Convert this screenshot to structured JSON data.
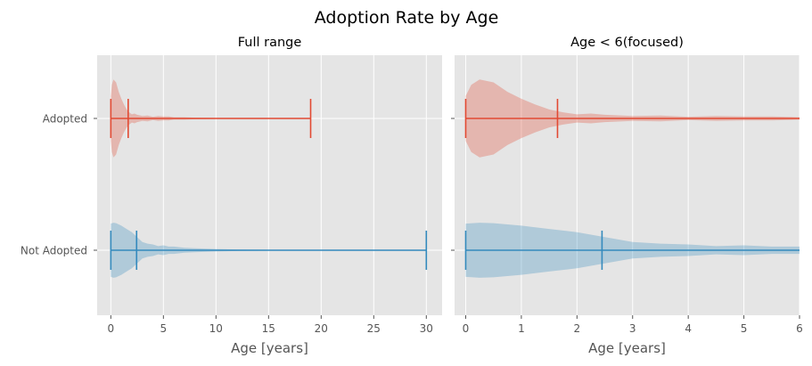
{
  "chart_data": {
    "type": "violin",
    "title": "Adoption Rate by Age",
    "colors": {
      "Adopted": "#E24A33",
      "Not Adopted": "#348ABD",
      "background": "#E5E5E5",
      "grid": "#FFFFFF"
    },
    "categories": [
      "Not Adopted",
      "Adopted"
    ],
    "series": [
      {
        "name": "Adopted",
        "stats": {
          "min": 0,
          "median": 1.65,
          "max": 19
        },
        "density": [
          [
            0,
            0.55
          ],
          [
            0.1,
            0.82
          ],
          [
            0.25,
            0.95
          ],
          [
            0.5,
            0.88
          ],
          [
            0.75,
            0.65
          ],
          [
            1,
            0.48
          ],
          [
            1.25,
            0.34
          ],
          [
            1.5,
            0.22
          ],
          [
            1.75,
            0.15
          ],
          [
            2,
            0.1
          ],
          [
            2.25,
            0.12
          ],
          [
            2.5,
            0.09
          ],
          [
            3,
            0.06
          ],
          [
            3.5,
            0.07
          ],
          [
            4,
            0.04
          ],
          [
            4.5,
            0.06
          ],
          [
            5,
            0.05
          ],
          [
            5.5,
            0.05
          ],
          [
            6,
            0.03
          ],
          [
            7,
            0.03
          ],
          [
            8,
            0.02
          ],
          [
            9,
            0.015
          ],
          [
            10,
            0.01
          ],
          [
            12,
            0.006
          ],
          [
            15,
            0.004
          ],
          [
            19,
            0.002
          ]
        ]
      },
      {
        "name": "Not Adopted",
        "stats": {
          "min": 0,
          "median": 2.45,
          "max": 30
        },
        "density": [
          [
            0,
            0.65
          ],
          [
            0.25,
            0.67
          ],
          [
            0.5,
            0.66
          ],
          [
            1,
            0.6
          ],
          [
            1.5,
            0.52
          ],
          [
            2,
            0.44
          ],
          [
            2.5,
            0.32
          ],
          [
            3,
            0.2
          ],
          [
            3.5,
            0.16
          ],
          [
            4,
            0.14
          ],
          [
            4.5,
            0.1
          ],
          [
            5,
            0.12
          ],
          [
            5.5,
            0.09
          ],
          [
            6,
            0.09
          ],
          [
            7,
            0.06
          ],
          [
            8,
            0.05
          ],
          [
            10,
            0.03
          ],
          [
            12,
            0.02
          ],
          [
            15,
            0.012
          ],
          [
            20,
            0.006
          ],
          [
            25,
            0.004
          ],
          [
            30,
            0.002
          ]
        ]
      }
    ],
    "panels": [
      {
        "title": "Full range",
        "xlabel": "Age [years]",
        "xlim": [
          -1.3,
          31.5
        ],
        "xticks": [
          0,
          5,
          10,
          15,
          20,
          25,
          30
        ],
        "ytick_labels": [
          "Adopted",
          "Not Adopted"
        ],
        "grid": true
      },
      {
        "title": "Age < 6(focused)",
        "xlabel": "Age [years]",
        "xlim": [
          -0.2,
          6
        ],
        "xticks": [
          0,
          1,
          2,
          3,
          4,
          5,
          6
        ],
        "ytick_labels": [],
        "grid": true
      }
    ]
  }
}
